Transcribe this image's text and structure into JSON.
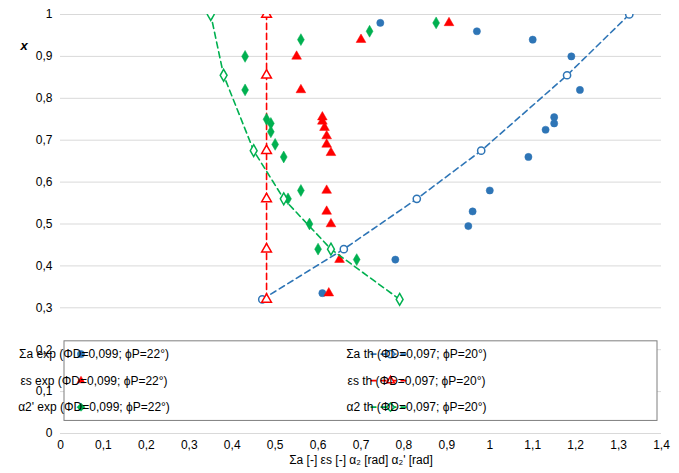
{
  "chart_data": {
    "type": "scatter",
    "x_label": "Σa [-] εs [-] α₂ [rad] α₂' [rad]",
    "y_label": "x",
    "xlim": [
      0,
      1.4
    ],
    "ylim": [
      0,
      1
    ],
    "xticks": [
      0,
      {
        "value": 0.1,
        "label": "0,1"
      },
      {
        "value": 0.2,
        "label": "0,2"
      },
      {
        "value": 0.3,
        "label": "0,3"
      },
      {
        "value": 0.4,
        "label": "0,4"
      },
      {
        "value": 0.5,
        "label": "0,5"
      },
      {
        "value": 0.6,
        "label": "0,6"
      },
      {
        "value": 0.7,
        "label": "0,7"
      },
      {
        "value": 0.8,
        "label": "0,8"
      },
      {
        "value": 0.9,
        "label": "0,9"
      },
      1,
      {
        "value": 1.1,
        "label": "1,1"
      },
      {
        "value": 1.2,
        "label": "1,2"
      },
      {
        "value": 1.3,
        "label": "1,3"
      },
      {
        "value": 1.4,
        "label": "1,4"
      }
    ],
    "yticks": [
      0,
      {
        "value": 0.1,
        "label": "0,1"
      },
      {
        "value": 0.2,
        "label": "0,2"
      },
      {
        "value": 0.3,
        "label": "0,3"
      },
      {
        "value": 0.4,
        "label": "0,4"
      },
      {
        "value": 0.5,
        "label": "0,5"
      },
      {
        "value": 0.6,
        "label": "0,6"
      },
      {
        "value": 0.7,
        "label": "0,7"
      },
      {
        "value": 0.8,
        "label": "0,8"
      },
      {
        "value": 0.9,
        "label": "0,9"
      },
      1
    ],
    "grid": "y",
    "legend": "lower left",
    "series": [
      {
        "name": "Σa exp (ΦD=0,099; ϕP=22°)",
        "type": "scatter",
        "color": "#2e75b6",
        "marker": "circle",
        "x": [
          0.745,
          0.97,
          1.1,
          1.19,
          1.21,
          1.15,
          1.15,
          1.13,
          1.09,
          1.0,
          0.96,
          0.95,
          0.78,
          0.61
        ],
        "values": [
          0.98,
          0.96,
          0.94,
          0.9,
          0.82,
          0.755,
          0.74,
          0.725,
          0.66,
          0.58,
          0.53,
          0.495,
          0.415,
          0.335
        ]
      },
      {
        "name": "Σa th (ΦD=0,097; ϕP=20°)",
        "type": "line",
        "color": "#2e75b6",
        "marker": "circle-open",
        "line_style": "dashed",
        "x": [
          0.47,
          0.66,
          0.83,
          0.98,
          1.18,
          1.325
        ],
        "values": [
          0.32,
          0.44,
          0.56,
          0.675,
          0.855,
          1.0
        ]
      },
      {
        "name": "εs exp (ΦD=0,099; ϕP=22°)",
        "type": "scatter",
        "color": "#ff0000",
        "marker": "triangle",
        "x": [
          0.905,
          0.7,
          0.55,
          0.56,
          0.61,
          0.61,
          0.615,
          0.62,
          0.62,
          0.63,
          0.62,
          0.62,
          0.63,
          0.65,
          0.625
        ],
        "values": [
          0.98,
          0.94,
          0.9,
          0.82,
          0.755,
          0.745,
          0.73,
          0.71,
          0.69,
          0.67,
          0.58,
          0.53,
          0.5,
          0.415,
          0.335
        ]
      },
      {
        "name": "εs th (ΦD=0,097; ϕP=20°)",
        "type": "line",
        "color": "#ff0000",
        "marker": "triangle-open",
        "line_style": "dashed",
        "x": [
          0.48,
          0.48,
          0.48,
          0.48,
          0.48,
          0.48
        ],
        "values": [
          0.32,
          0.44,
          0.56,
          0.675,
          0.855,
          1.0
        ]
      },
      {
        "name": "α2' exp (ΦD=0,099; ϕP=22°)",
        "type": "scatter",
        "color": "#00b050",
        "marker": "diamond",
        "x": [
          0.875,
          0.72,
          0.56,
          0.43,
          0.43,
          0.48,
          0.49,
          0.49,
          0.5,
          0.52,
          0.56,
          0.53,
          0.58,
          0.6,
          0.69
        ],
        "values": [
          0.98,
          0.96,
          0.94,
          0.9,
          0.82,
          0.75,
          0.74,
          0.72,
          0.69,
          0.66,
          0.58,
          0.56,
          0.5,
          0.44,
          0.415
        ]
      },
      {
        "name": "α2 th (ΦD=0,097; ϕP=20°)",
        "type": "line",
        "color": "#00b050",
        "marker": "diamond-open",
        "line_style": "dashed",
        "x": [
          0.79,
          0.63,
          0.52,
          0.45,
          0.38,
          0.35
        ],
        "values": [
          0.32,
          0.44,
          0.56,
          0.675,
          0.855,
          1.0
        ]
      }
    ]
  }
}
